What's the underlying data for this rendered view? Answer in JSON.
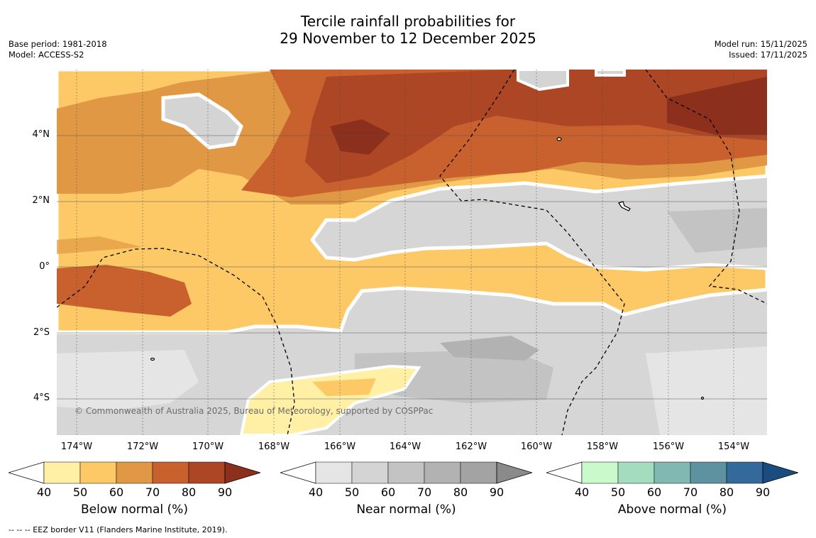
{
  "title": {
    "line1": "Tercile rainfall probabilities for",
    "line2": "29 November to 12 December 2025"
  },
  "meta": {
    "base_period": "Base period: 1981-2018",
    "model": "Model: ACCESS-S2",
    "model_run": "Model run: 15/11/2025",
    "issued": "Issued: 17/11/2025"
  },
  "map": {
    "latitude_labels": [
      "4°N",
      "2°N",
      "0°",
      "2°S",
      "4°S"
    ],
    "longitude_labels": [
      "174°W",
      "172°W",
      "170°W",
      "168°W",
      "166°W",
      "164°W",
      "162°W",
      "160°W",
      "158°W",
      "156°W",
      "154°W"
    ],
    "lat_range": [
      -5.0,
      6.0
    ],
    "lon_range": [
      -174.6,
      -153.0
    ],
    "copyright": "© Commonwealth of Australia 2025, Bureau of Meteorology, supported by COSPPac"
  },
  "legends": [
    {
      "name": "below",
      "title": "Below normal (%)",
      "ticks": [
        "40",
        "50",
        "60",
        "70",
        "80",
        "90"
      ],
      "colors": [
        "#fff0a6",
        "#fdc966",
        "#e09844",
        "#c9612f",
        "#ac4624",
        "#8c2f1c"
      ]
    },
    {
      "name": "near",
      "title": "Near normal (%)",
      "ticks": [
        "40",
        "50",
        "60",
        "70",
        "80",
        "90"
      ],
      "colors": [
        "#e5e5e5",
        "#d4d4d4",
        "#c3c3c3",
        "#b2b2b2",
        "#a3a3a3",
        "#8a8a8a"
      ]
    },
    {
      "name": "above",
      "title": "Above normal (%)",
      "ticks": [
        "40",
        "50",
        "60",
        "70",
        "80",
        "90"
      ],
      "colors": [
        "#caf9cc",
        "#a3dcbf",
        "#81b9b2",
        "#5e92a1",
        "#336a9b",
        "#1a4c80"
      ]
    }
  ],
  "footnote": "--  --  -- EEZ border V11 (Flanders Marine Institute, 2019)."
}
